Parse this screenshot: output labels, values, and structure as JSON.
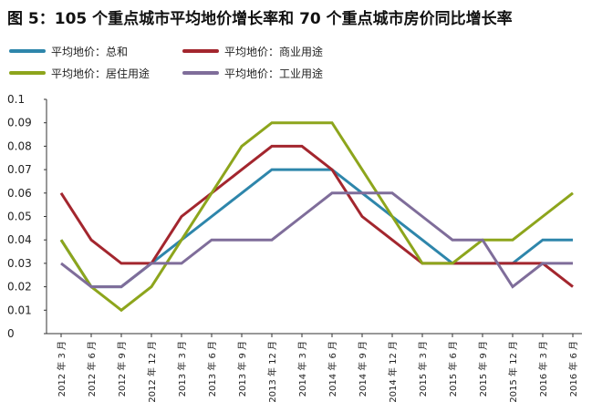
{
  "chart_data": {
    "type": "line",
    "title": "图 5：105 个重点城市平均地价增长率和 70 个重点城市房价同比增长率",
    "categories": [
      "2012 年 3 月",
      "2012 年 6 月",
      "2012 年 9 月",
      "2012 年 12 月",
      "2013 年 3 月",
      "2013 年 6 月",
      "2013 年 9 月",
      "2013 年 12 月",
      "2014 年 3 月",
      "2014 年 6 月",
      "2014 年 9 月",
      "2014 年 12 月",
      "2015 年 3 月",
      "2015 年 6 月",
      "2015 年 9 月",
      "2015 年 12 月",
      "2016 年 3 月",
      "2016 年 6 月"
    ],
    "y_ticks": [
      "0",
      "0.01",
      "0.02",
      "0.03",
      "0.04",
      "0.05",
      "0.06",
      "0.07",
      "0.08",
      "0.09",
      "0.1"
    ],
    "ylim": [
      0,
      0.1
    ],
    "legend_position": "top",
    "series": [
      {
        "name": "平均地价：总和",
        "color": "#2e86ab",
        "values": [
          0.04,
          0.02,
          0.02,
          0.03,
          0.04,
          0.05,
          0.06,
          0.07,
          0.07,
          0.07,
          0.06,
          0.05,
          0.04,
          0.03,
          0.03,
          0.03,
          0.04,
          0.04
        ]
      },
      {
        "name": "平均地价：商业用途",
        "color": "#a3262e",
        "values": [
          0.06,
          0.04,
          0.03,
          0.03,
          0.05,
          0.06,
          0.07,
          0.08,
          0.08,
          0.07,
          0.05,
          0.04,
          0.03,
          0.03,
          0.03,
          0.03,
          0.03,
          0.02
        ]
      },
      {
        "name": "平均地价：居住用途",
        "color": "#8da51c",
        "values": [
          0.04,
          0.02,
          0.01,
          0.02,
          0.04,
          0.06,
          0.08,
          0.09,
          0.09,
          0.09,
          0.07,
          0.05,
          0.03,
          0.03,
          0.04,
          0.04,
          0.05,
          0.06
        ]
      },
      {
        "name": "平均地价：工业用途",
        "color": "#7f6d9a",
        "values": [
          0.03,
          0.02,
          0.02,
          0.03,
          0.03,
          0.04,
          0.04,
          0.04,
          0.05,
          0.06,
          0.06,
          0.06,
          0.05,
          0.04,
          0.04,
          0.02,
          0.03,
          0.03
        ]
      }
    ]
  }
}
